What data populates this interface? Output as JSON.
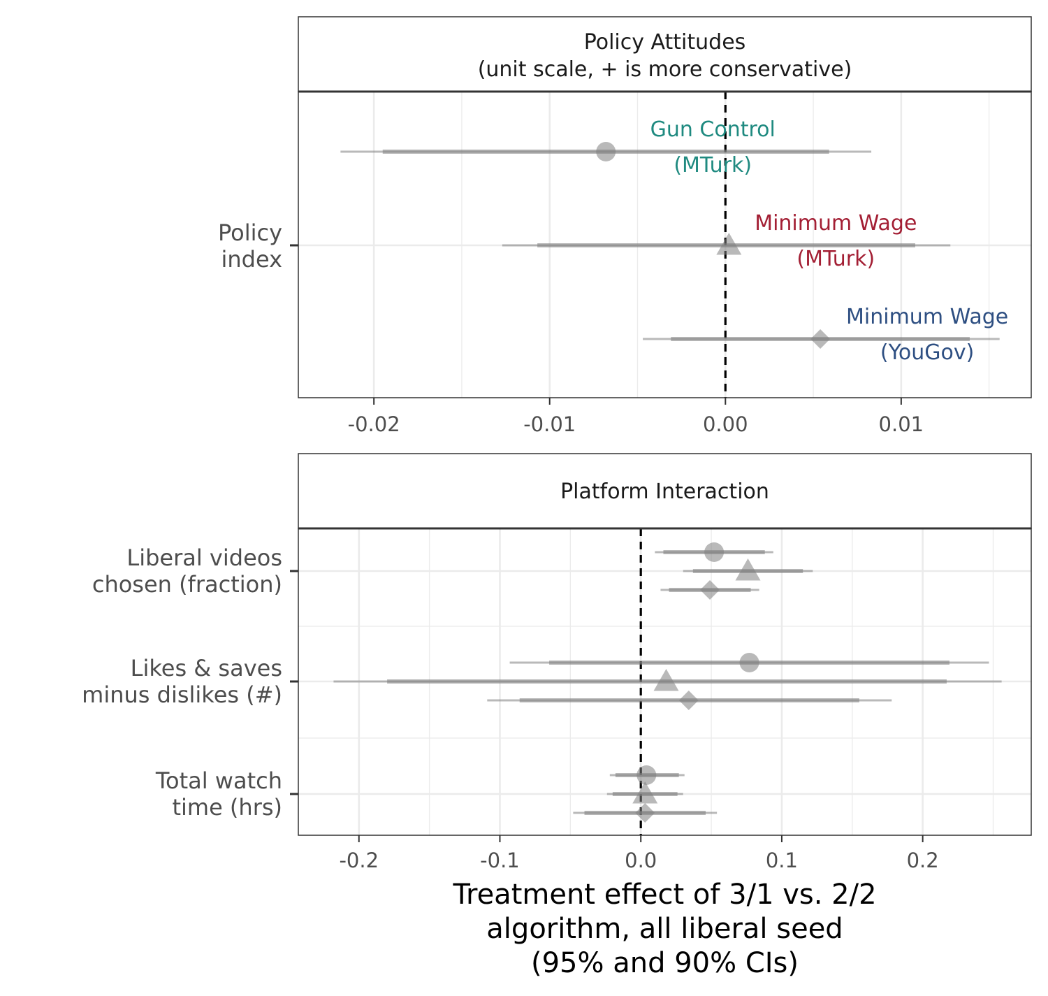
{
  "chart_data": [
    {
      "type": "forest",
      "title": "Policy Attitudes\n(unit scale, + is more conservative)",
      "categories": [
        "Policy\nindex"
      ],
      "x_ticks": [
        -0.02,
        -0.01,
        0.0,
        0.01
      ],
      "x_tick_labels": [
        "-0.02",
        "-0.01",
        "0.00",
        "0.01"
      ],
      "xlim": [
        -0.0243,
        0.0174
      ],
      "reference_line": 0,
      "grid": true,
      "series": [
        {
          "name": "Gun Control\n(MTurk)",
          "shape": "circle",
          "color": "#1f8a80",
          "category": "Policy\nindex",
          "offset": 1,
          "estimate": -0.0068,
          "ci90": [
            -0.0195,
            0.0059
          ],
          "ci95": [
            -0.0219,
            0.0083
          ]
        },
        {
          "name": "Minimum Wage\n(MTurk)",
          "shape": "triangle",
          "color": "#a31f34",
          "category": "Policy\nindex",
          "offset": 0,
          "estimate": 0.0002,
          "ci90": [
            -0.0107,
            0.0108
          ],
          "ci95": [
            -0.0127,
            0.0128
          ]
        },
        {
          "name": "Minimum Wage\n(YouGov)",
          "shape": "diamond",
          "color": "#2e4f82",
          "category": "Policy\nindex",
          "offset": -1,
          "estimate": 0.0054,
          "ci90": [
            -0.0031,
            0.0139
          ],
          "ci95": [
            -0.0047,
            0.0156
          ]
        }
      ]
    },
    {
      "type": "forest",
      "title": "Platform Interaction",
      "categories": [
        "Liberal videos\nchosen (fraction)",
        "Likes & saves\nminus dislikes (#)",
        "Total watch\ntime (hrs)"
      ],
      "x_ticks": [
        -0.2,
        -0.1,
        0.0,
        0.1,
        0.2
      ],
      "x_tick_labels": [
        "-0.2",
        "-0.1",
        "0.0",
        "0.1",
        "0.2"
      ],
      "xlim": [
        -0.243,
        0.277
      ],
      "reference_line": 0,
      "grid": true,
      "xlabel": "Treatment effect of 3/1 vs. 2/2\nalgorithm, all liberal seed\n(95% and 90% CIs)",
      "series": [
        {
          "shape": "circle",
          "points": [
            {
              "category": "Liberal videos\nchosen (fraction)",
              "estimate": 0.052,
              "ci90": [
                0.016,
                0.088
              ],
              "ci95": [
                0.01,
                0.094
              ]
            },
            {
              "category": "Likes & saves\nminus dislikes (#)",
              "estimate": 0.077,
              "ci90": [
                -0.065,
                0.219
              ],
              "ci95": [
                -0.093,
                0.247
              ]
            },
            {
              "category": "Total watch\ntime (hrs)",
              "estimate": 0.004,
              "ci90": [
                -0.018,
                0.027
              ],
              "ci95": [
                -0.022,
                0.031
              ]
            }
          ]
        },
        {
          "shape": "triangle",
          "points": [
            {
              "category": "Liberal videos\nchosen (fraction)",
              "estimate": 0.076,
              "ci90": [
                0.037,
                0.115
              ],
              "ci95": [
                0.03,
                0.122
              ]
            },
            {
              "category": "Likes & saves\nminus dislikes (#)",
              "estimate": 0.018,
              "ci90": [
                -0.18,
                0.217
              ],
              "ci95": [
                -0.218,
                0.256
              ]
            },
            {
              "category": "Total watch\ntime (hrs)",
              "estimate": 0.003,
              "ci90": [
                -0.02,
                0.026
              ],
              "ci95": [
                -0.024,
                0.03
              ]
            }
          ]
        },
        {
          "shape": "diamond",
          "points": [
            {
              "category": "Liberal videos\nchosen (fraction)",
              "estimate": 0.049,
              "ci90": [
                0.02,
                0.078
              ],
              "ci95": [
                0.014,
                0.084
              ]
            },
            {
              "category": "Likes & saves\nminus dislikes (#)",
              "estimate": 0.034,
              "ci90": [
                -0.086,
                0.155
              ],
              "ci95": [
                -0.109,
                0.178
              ]
            },
            {
              "category": "Total watch\ntime (hrs)",
              "estimate": 0.003,
              "ci90": [
                -0.04,
                0.046
              ],
              "ci95": [
                -0.048,
                0.054
              ]
            }
          ]
        }
      ]
    }
  ]
}
